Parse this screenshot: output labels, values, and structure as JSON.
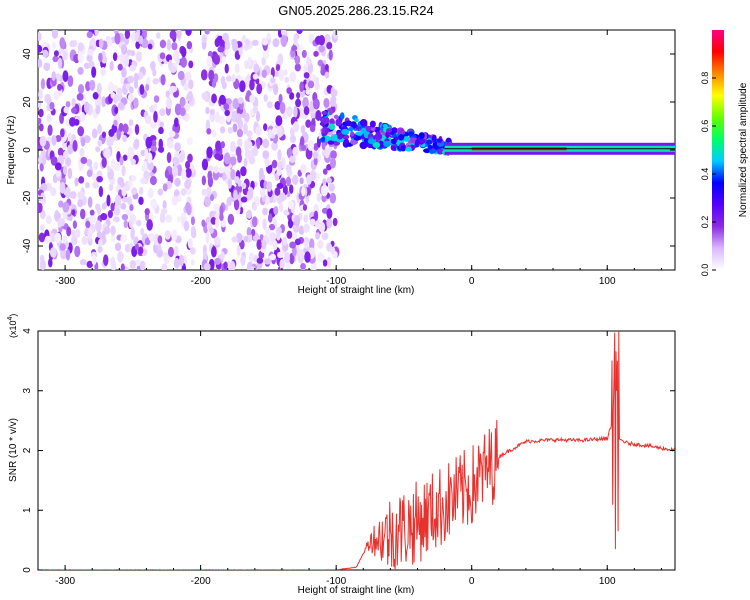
{
  "title": "GN05.2025.286.23.15.R24",
  "chart_data": [
    {
      "type": "heatmap",
      "title": "GN05.2025.286.23.15.R24",
      "xlabel": "Height of straight line (km)",
      "ylabel": "Frequency (Hz)",
      "xlim": [
        -320,
        150
      ],
      "ylim": [
        -50,
        50
      ],
      "xticks": [
        -300,
        -200,
        -100,
        0,
        100
      ],
      "yticks": [
        -40,
        -20,
        0,
        20,
        40
      ],
      "colorbar": {
        "label": "Normalized spectral amplitude",
        "range": [
          0,
          1
        ],
        "ticks": [
          "0.0",
          "0.2",
          "0.4",
          "0.6",
          "0.8"
        ],
        "stops": [
          "#ffffff",
          "#d9b8ff",
          "#8a2be2",
          "#5500ff",
          "#0000ff",
          "#00ccff",
          "#00ff66",
          "#66ff00",
          "#ffff00",
          "#ff8800",
          "#ff0000",
          "#ff0088"
        ]
      },
      "regions": [
        {
          "name": "noise-scatter",
          "x_range": [
            -320,
            -100
          ],
          "freq_range": [
            -50,
            50
          ],
          "amplitude": 0.1
        },
        {
          "name": "gap",
          "x_range": [
            -205,
            -198
          ],
          "freq_range": [
            -50,
            50
          ],
          "amplitude": 0.0
        },
        {
          "name": "transition",
          "x_range": [
            -110,
            -20
          ],
          "center_freq": [
            10,
            0
          ],
          "amplitude": 0.35
        },
        {
          "name": "signal-line",
          "x_range": [
            -20,
            150
          ],
          "center_freq": [
            0,
            1
          ],
          "amplitude": 0.8
        }
      ]
    },
    {
      "type": "line",
      "xlabel": "Height of straight line (km)",
      "ylabel": "SNR (10 * v/v)",
      "multiplier": "(x10",
      "multiplier_exp": "4",
      "xlim": [
        -320,
        150
      ],
      "ylim": [
        0,
        4
      ],
      "xticks": [
        -300,
        -200,
        -100,
        0,
        100
      ],
      "yticks": [
        0,
        1,
        2,
        3,
        4
      ],
      "color": "#e8302c",
      "series": [
        {
          "name": "SNR",
          "x": [
            -320,
            -200,
            -100,
            -85,
            -75,
            -60,
            -40,
            -20,
            0,
            20,
            40,
            60,
            80,
            100,
            104,
            106,
            108,
            115,
            130,
            150
          ],
          "y": [
            0.0,
            0.0,
            0.0,
            0.05,
            0.5,
            0.6,
            0.8,
            1.1,
            1.4,
            1.9,
            2.15,
            2.18,
            2.17,
            2.2,
            2.5,
            1.0,
            2.2,
            2.12,
            2.08,
            2.0
          ]
        }
      ]
    }
  ]
}
